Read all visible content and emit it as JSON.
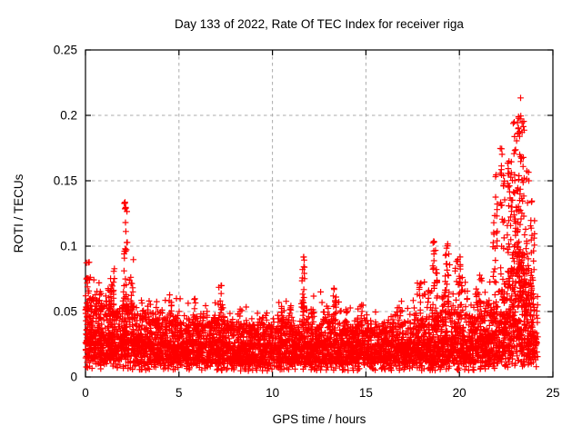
{
  "chart_data": {
    "type": "scatter",
    "title": "Day 133 of 2022, Rate Of TEC Index for receiver riga",
    "xlabel": "GPS time / hours",
    "ylabel": "ROTI / TECUs",
    "xlim": [
      0,
      25
    ],
    "ylim": [
      0,
      0.25
    ],
    "xticks": [
      0,
      5,
      10,
      15,
      20,
      25
    ],
    "xtick_labels": [
      "0",
      "5",
      "10",
      "15",
      "20",
      "25"
    ],
    "yticks": [
      0,
      0.05,
      0.1,
      0.15,
      0.2,
      0.25
    ],
    "ytick_labels": [
      "0",
      "0.05",
      "0.1",
      "0.15",
      "0.2",
      "0.25"
    ],
    "legend": null,
    "grid": {
      "visible": true,
      "style": "dashed",
      "color": "#ababab"
    },
    "border_color": "#000000",
    "background_color": "#ffffff",
    "marker": {
      "shape": "plus",
      "color": "#ff0000",
      "size": 7
    },
    "x_data_range": [
      0,
      24.2
    ],
    "seed": 20220513,
    "band_format": "[x_start_h, x_end_h, n_points, y_band_low_TECU, y_band_high_TECU, y_max_outlier_TECU]",
    "band": [
      [
        0,
        0.5,
        125,
        0.012,
        0.062,
        0.09
      ],
      [
        0.5,
        1,
        120,
        0.012,
        0.058,
        0.078
      ],
      [
        1,
        1.5,
        120,
        0.012,
        0.055,
        0.08
      ],
      [
        1.5,
        2,
        115,
        0.012,
        0.05,
        0.068
      ],
      [
        2,
        2.5,
        115,
        0.012,
        0.055,
        0.09
      ],
      [
        2.5,
        3,
        110,
        0.011,
        0.048,
        0.068
      ],
      [
        3,
        3.5,
        110,
        0.01,
        0.045,
        0.062
      ],
      [
        3.5,
        4,
        110,
        0.01,
        0.043,
        0.058
      ],
      [
        4,
        4.5,
        110,
        0.01,
        0.043,
        0.06
      ],
      [
        4.5,
        5,
        110,
        0.01,
        0.042,
        0.065
      ],
      [
        5,
        5.5,
        105,
        0.01,
        0.04,
        0.06
      ],
      [
        5.5,
        6,
        105,
        0.01,
        0.042,
        0.06
      ],
      [
        6,
        6.5,
        105,
        0.01,
        0.04,
        0.055
      ],
      [
        6.5,
        7,
        105,
        0.01,
        0.042,
        0.06
      ],
      [
        7,
        7.5,
        110,
        0.01,
        0.045,
        0.065
      ],
      [
        7.5,
        8,
        105,
        0.01,
        0.04,
        0.055
      ],
      [
        8,
        8.5,
        105,
        0.009,
        0.038,
        0.052
      ],
      [
        8.5,
        9,
        105,
        0.009,
        0.04,
        0.055
      ],
      [
        9,
        9.5,
        105,
        0.009,
        0.038,
        0.052
      ],
      [
        9.5,
        10,
        105,
        0.009,
        0.04,
        0.055
      ],
      [
        10,
        10.5,
        105,
        0.01,
        0.042,
        0.06
      ],
      [
        10.5,
        11,
        105,
        0.01,
        0.044,
        0.062
      ],
      [
        11,
        11.5,
        105,
        0.01,
        0.04,
        0.058
      ],
      [
        11.5,
        12,
        110,
        0.01,
        0.042,
        0.07
      ],
      [
        12,
        12.5,
        105,
        0.01,
        0.042,
        0.064
      ],
      [
        12.5,
        13,
        105,
        0.01,
        0.044,
        0.068
      ],
      [
        13,
        13.5,
        105,
        0.01,
        0.044,
        0.068
      ],
      [
        13.5,
        14,
        105,
        0.01,
        0.04,
        0.06
      ],
      [
        14,
        14.5,
        105,
        0.01,
        0.038,
        0.055
      ],
      [
        14.5,
        15,
        105,
        0.01,
        0.04,
        0.058
      ],
      [
        15,
        15.5,
        105,
        0.01,
        0.038,
        0.054
      ],
      [
        15.5,
        16,
        100,
        0.01,
        0.036,
        0.05
      ],
      [
        16,
        16.5,
        100,
        0.01,
        0.038,
        0.054
      ],
      [
        16.5,
        17,
        105,
        0.01,
        0.04,
        0.058
      ],
      [
        17,
        17.5,
        105,
        0.01,
        0.042,
        0.062
      ],
      [
        17.5,
        18,
        105,
        0.01,
        0.044,
        0.072
      ],
      [
        18,
        18.5,
        110,
        0.01,
        0.046,
        0.08
      ],
      [
        18.5,
        19,
        110,
        0.01,
        0.048,
        0.09
      ],
      [
        19,
        19.5,
        110,
        0.01,
        0.05,
        0.09
      ],
      [
        19.5,
        20,
        110,
        0.01,
        0.05,
        0.088
      ],
      [
        20,
        20.5,
        110,
        0.01,
        0.048,
        0.085
      ],
      [
        20.5,
        21,
        110,
        0.01,
        0.046,
        0.072
      ],
      [
        21,
        21.5,
        110,
        0.011,
        0.05,
        0.08
      ],
      [
        21.5,
        22,
        115,
        0.012,
        0.055,
        0.1
      ],
      [
        22,
        22.5,
        120,
        0.013,
        0.065,
        0.13
      ],
      [
        22.5,
        23,
        125,
        0.014,
        0.08,
        0.16
      ],
      [
        23,
        23.5,
        130,
        0.015,
        0.095,
        0.18
      ],
      [
        23.5,
        24,
        120,
        0.013,
        0.075,
        0.14
      ],
      [
        24,
        24.2,
        30,
        0.01,
        0.05,
        0.07
      ]
    ],
    "spikes_format": "[x_center_h, x_width_h, y_bottom_TECU, y_top_TECU, n_points]",
    "spikes": [
      [
        0.15,
        0.25,
        0.05,
        0.088,
        20
      ],
      [
        1.4,
        0.3,
        0.05,
        0.083,
        18
      ],
      [
        2.15,
        0.18,
        0.05,
        0.134,
        30
      ],
      [
        2.5,
        0.2,
        0.045,
        0.09,
        12
      ],
      [
        4.6,
        0.2,
        0.04,
        0.063,
        8
      ],
      [
        5.8,
        0.25,
        0.038,
        0.06,
        8
      ],
      [
        7.2,
        0.2,
        0.04,
        0.07,
        12
      ],
      [
        8.3,
        0.3,
        0.035,
        0.052,
        8
      ],
      [
        10.6,
        0.3,
        0.038,
        0.058,
        8
      ],
      [
        11.65,
        0.15,
        0.045,
        0.092,
        18
      ],
      [
        12.15,
        0.2,
        0.04,
        0.062,
        8
      ],
      [
        13.3,
        0.25,
        0.04,
        0.068,
        10
      ],
      [
        14.7,
        0.3,
        0.035,
        0.055,
        8
      ],
      [
        16.8,
        0.3,
        0.038,
        0.058,
        8
      ],
      [
        17.8,
        0.25,
        0.04,
        0.072,
        10
      ],
      [
        18.7,
        0.25,
        0.05,
        0.104,
        22
      ],
      [
        19.3,
        0.3,
        0.05,
        0.102,
        22
      ],
      [
        19.9,
        0.3,
        0.048,
        0.092,
        18
      ],
      [
        21,
        0.3,
        0.04,
        0.078,
        10
      ],
      [
        21.9,
        0.25,
        0.05,
        0.155,
        22
      ],
      [
        22.3,
        0.25,
        0.055,
        0.175,
        25
      ],
      [
        22.7,
        0.3,
        0.06,
        0.165,
        28
      ],
      [
        23,
        0.25,
        0.06,
        0.195,
        35
      ],
      [
        23.2,
        0.2,
        0.06,
        0.214,
        40
      ],
      [
        23.4,
        0.2,
        0.06,
        0.196,
        30
      ],
      [
        23.65,
        0.2,
        0.05,
        0.158,
        22
      ],
      [
        23.9,
        0.25,
        0.04,
        0.12,
        18
      ]
    ],
    "y_global_max": 0.215,
    "y_global_max_at_x": 23.2
  }
}
